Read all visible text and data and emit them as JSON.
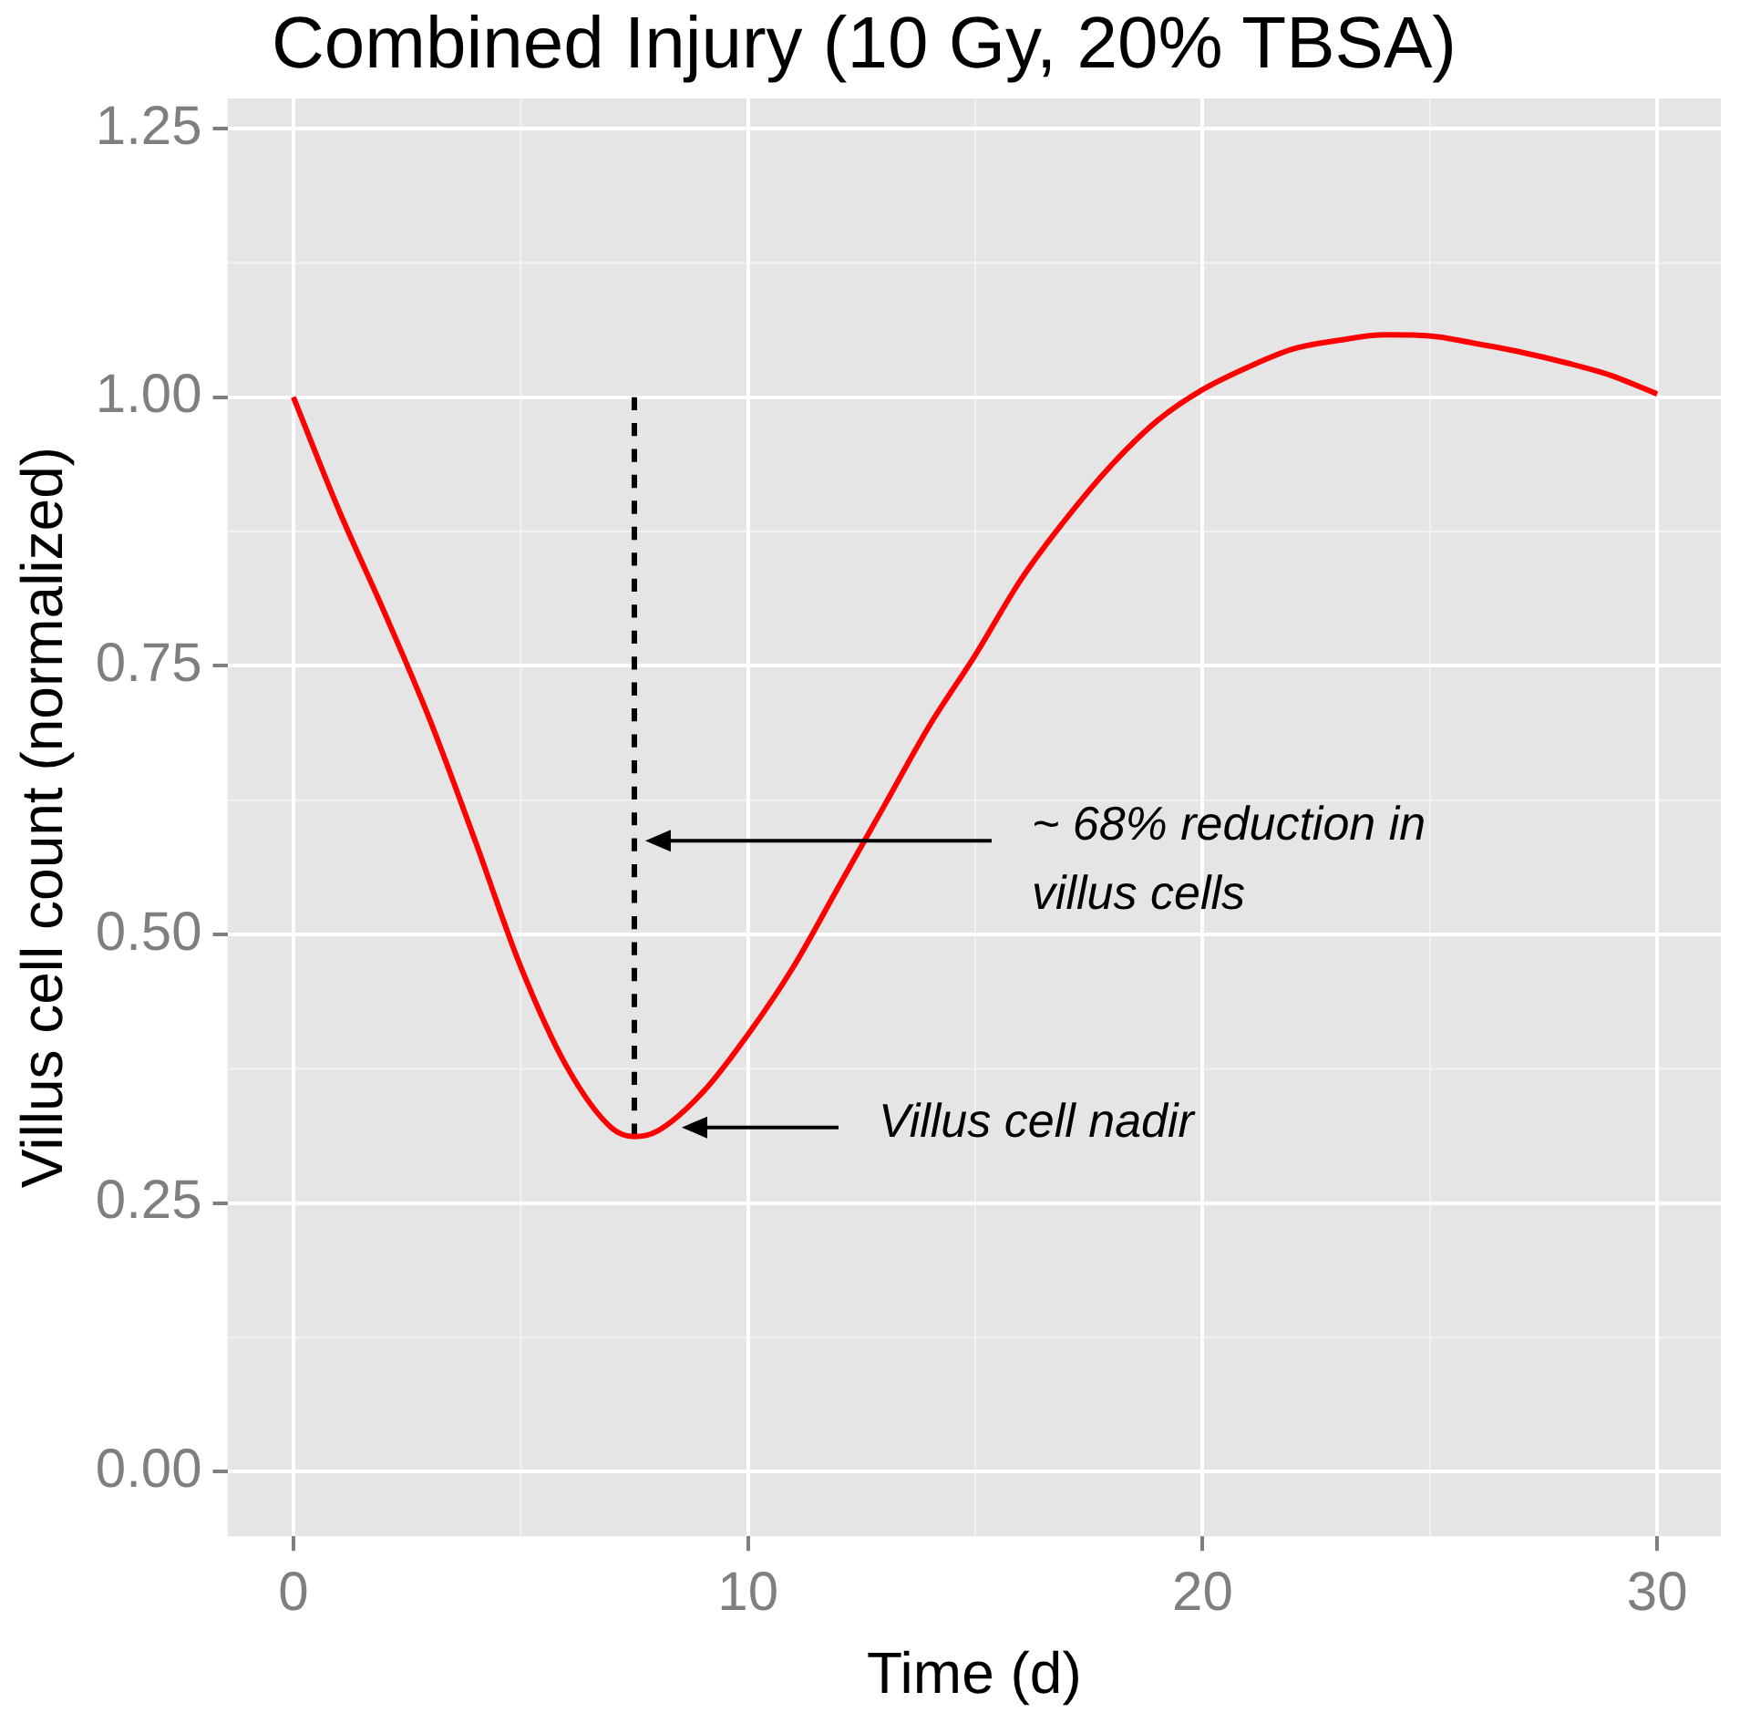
{
  "chart_data": {
    "type": "line",
    "title": "Combined Injury (10 Gy, 20% TBSA)",
    "xlabel": "Time (d)",
    "ylabel": "Villus cell count (normalized)",
    "x": [
      0,
      1,
      2,
      3,
      4,
      5,
      6,
      7,
      7.5,
      8,
      9,
      10,
      11,
      12,
      13,
      14,
      15,
      16,
      17,
      18,
      19,
      20,
      21,
      22,
      23,
      24,
      25,
      26,
      27,
      28,
      29,
      30
    ],
    "series": [
      {
        "color": "#ff0000",
        "line_style": "solid",
        "values": [
          1.0,
          0.895,
          0.8,
          0.7,
          0.587,
          0.47,
          0.378,
          0.32,
          0.312,
          0.317,
          0.353,
          0.407,
          0.47,
          0.545,
          0.62,
          0.695,
          0.76,
          0.83,
          0.887,
          0.937,
          0.978,
          1.007,
          1.028,
          1.045,
          1.053,
          1.058,
          1.057,
          1.05,
          1.042,
          1.032,
          1.02,
          1.003
        ]
      },
      {
        "type": "line",
        "color": "#000000",
        "line_style": "dashed",
        "x": [
          7.5,
          7.5
        ],
        "values": [
          0.312,
          1.0
        ]
      }
    ],
    "xlim": [
      -1.45,
      31.4
    ],
    "ylim": [
      -0.06,
      1.278
    ],
    "xticks": [
      0,
      10,
      20,
      30
    ],
    "yticks": [
      {
        "value": 0,
        "label": "0.00"
      },
      {
        "value": 0.25,
        "label": "0.25"
      },
      {
        "value": 0.5,
        "label": "0.50"
      },
      {
        "value": 0.75,
        "label": "0.75"
      },
      {
        "value": 1,
        "label": "1.00"
      },
      {
        "value": 1.25,
        "label": "1.25"
      }
    ],
    "annotations": [
      "~ 68% reduction in villus cells",
      "Villus cell nadir"
    ],
    "grid": true,
    "legend": false,
    "marker": "none"
  }
}
